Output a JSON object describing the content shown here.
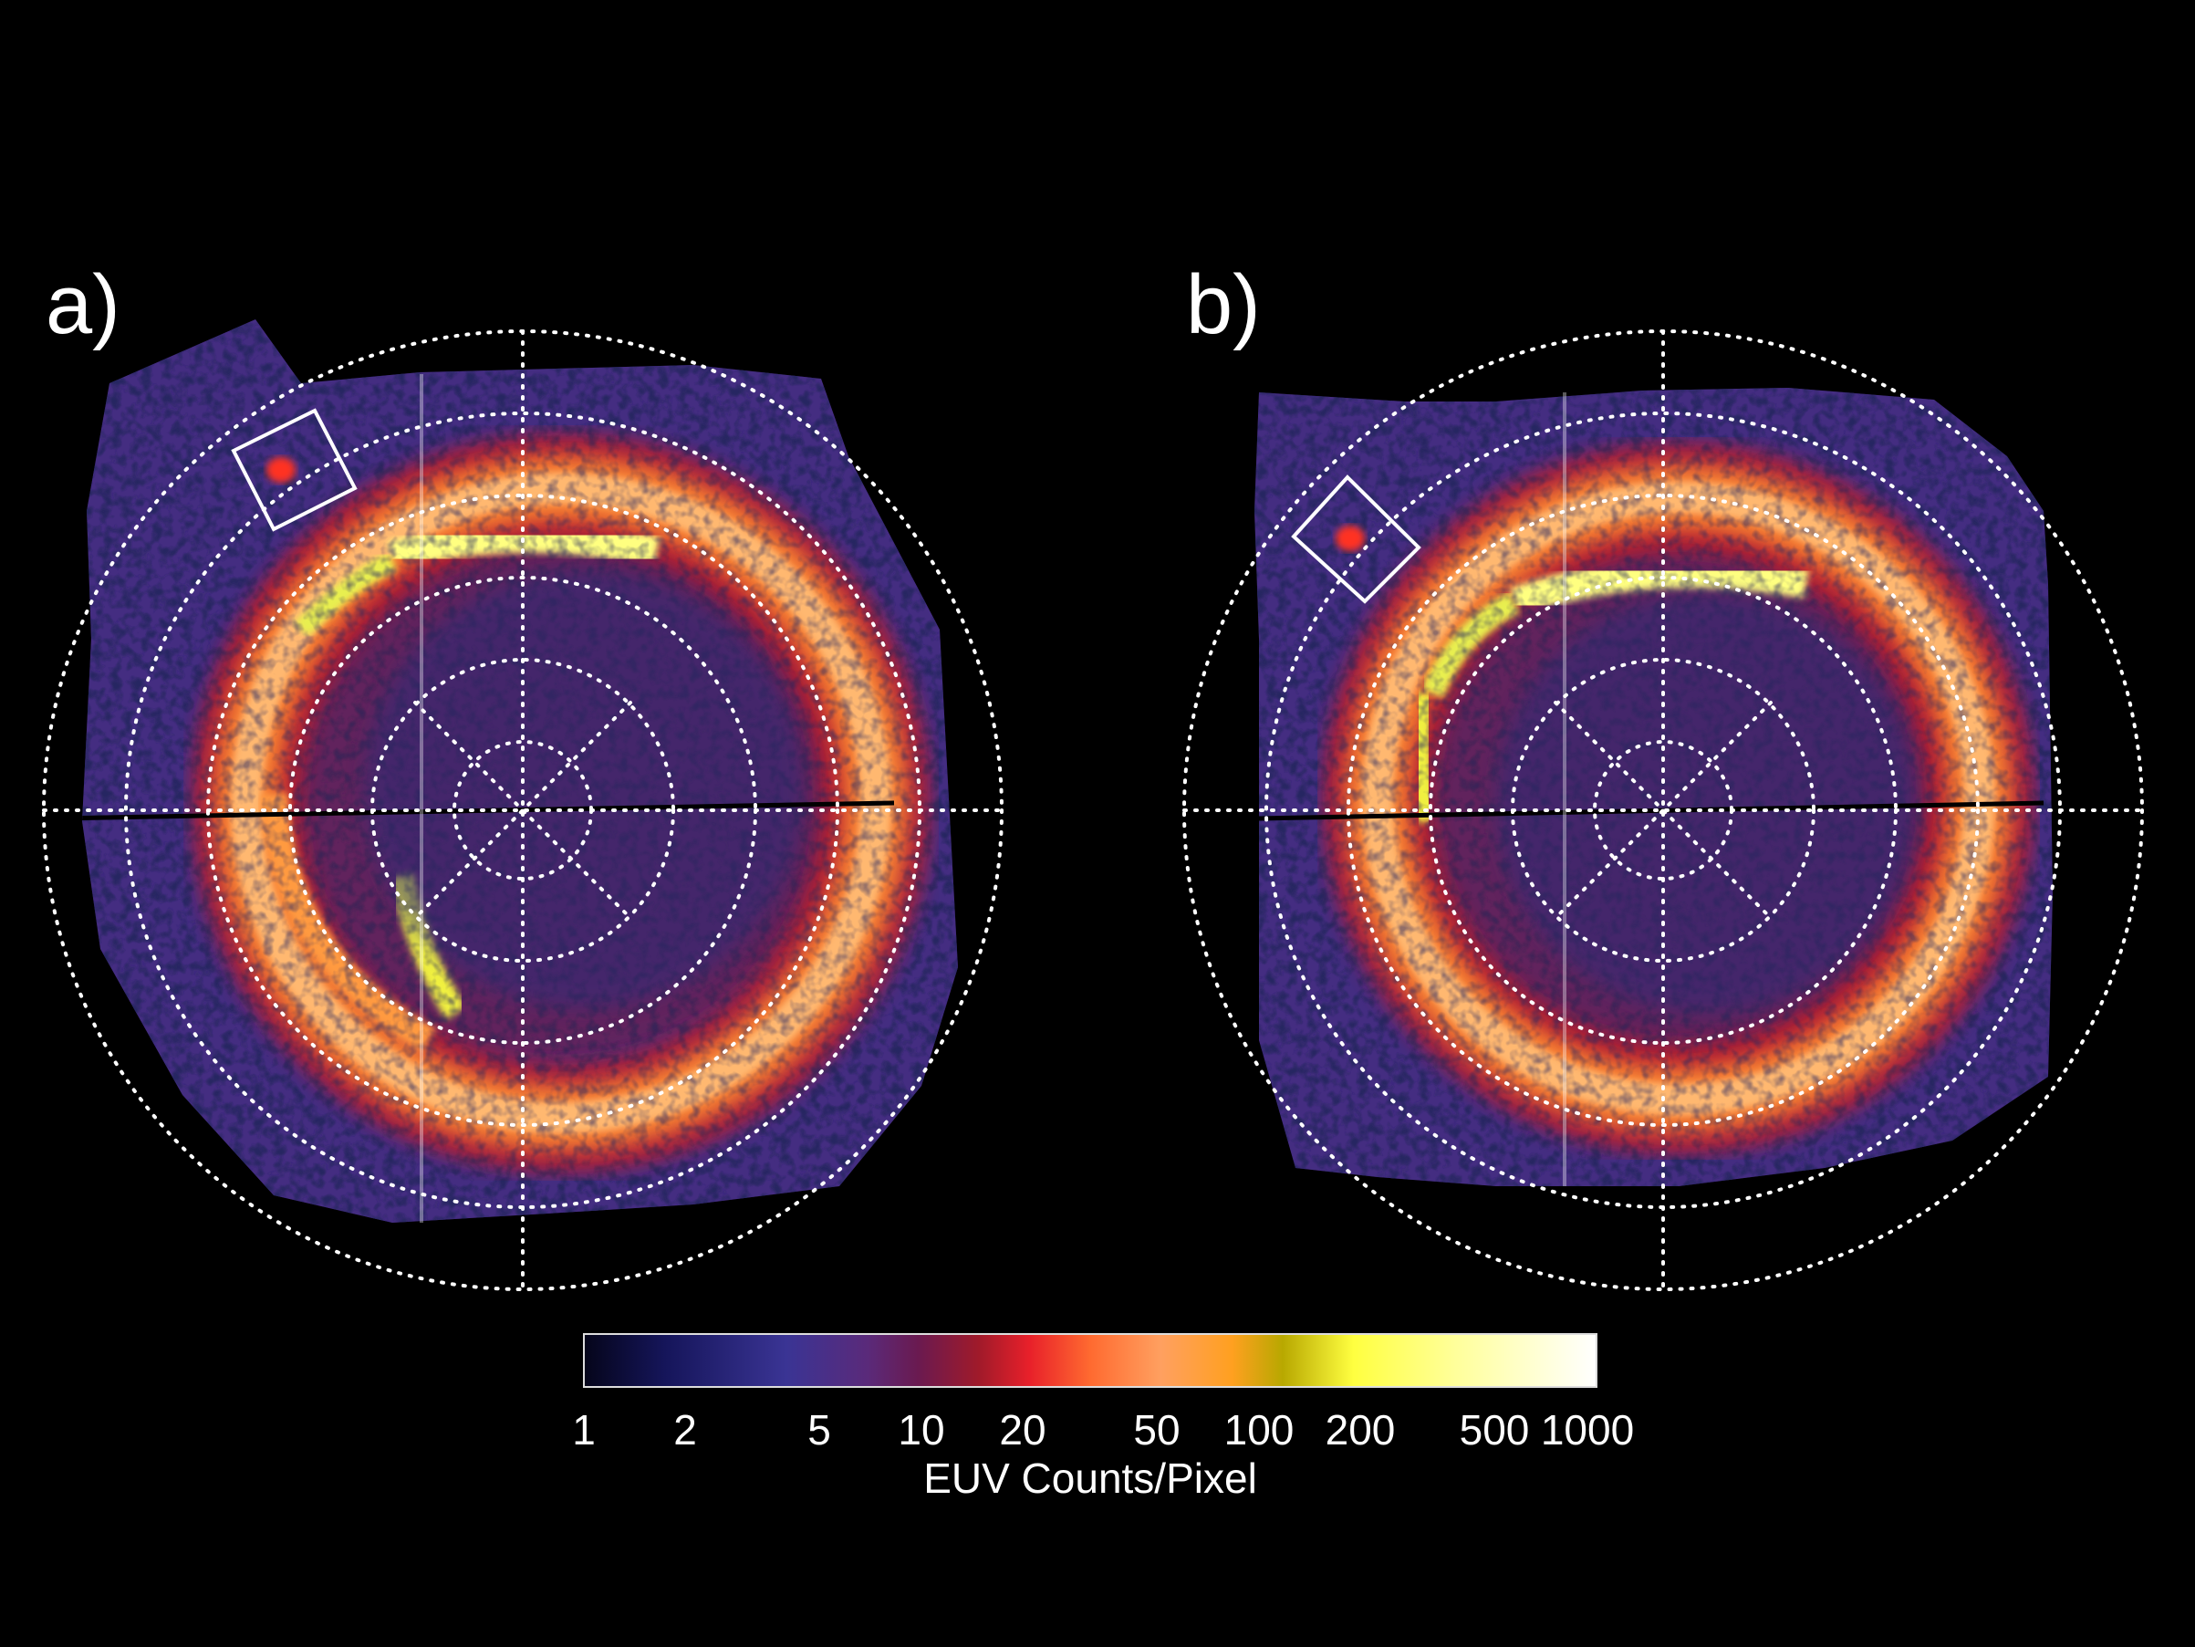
{
  "panels": [
    {
      "label": "a)"
    },
    {
      "label": "b)"
    }
  ],
  "colorbar": {
    "title": "EUV Counts/Pixel",
    "ticks": [
      "1",
      "2",
      "5",
      "10",
      "20",
      "50",
      "100",
      "200",
      "500",
      "1000"
    ],
    "tick_values": [
      1,
      2,
      5,
      10,
      20,
      50,
      100,
      200,
      500,
      1000
    ],
    "range": [
      1,
      1000
    ],
    "scale": "log",
    "colormap": [
      "#05051a",
      "#1a1a55",
      "#3b3496",
      "#5a2a7a",
      "#7a1040",
      "#b01a28",
      "#e01e22",
      "#ff5a1a",
      "#ff9a40",
      "#ffa020",
      "#c8b000",
      "#ffff40",
      "#ffff90",
      "#ffffff"
    ]
  },
  "colors": {
    "background": "#000000",
    "grid": "#ffffff"
  }
}
